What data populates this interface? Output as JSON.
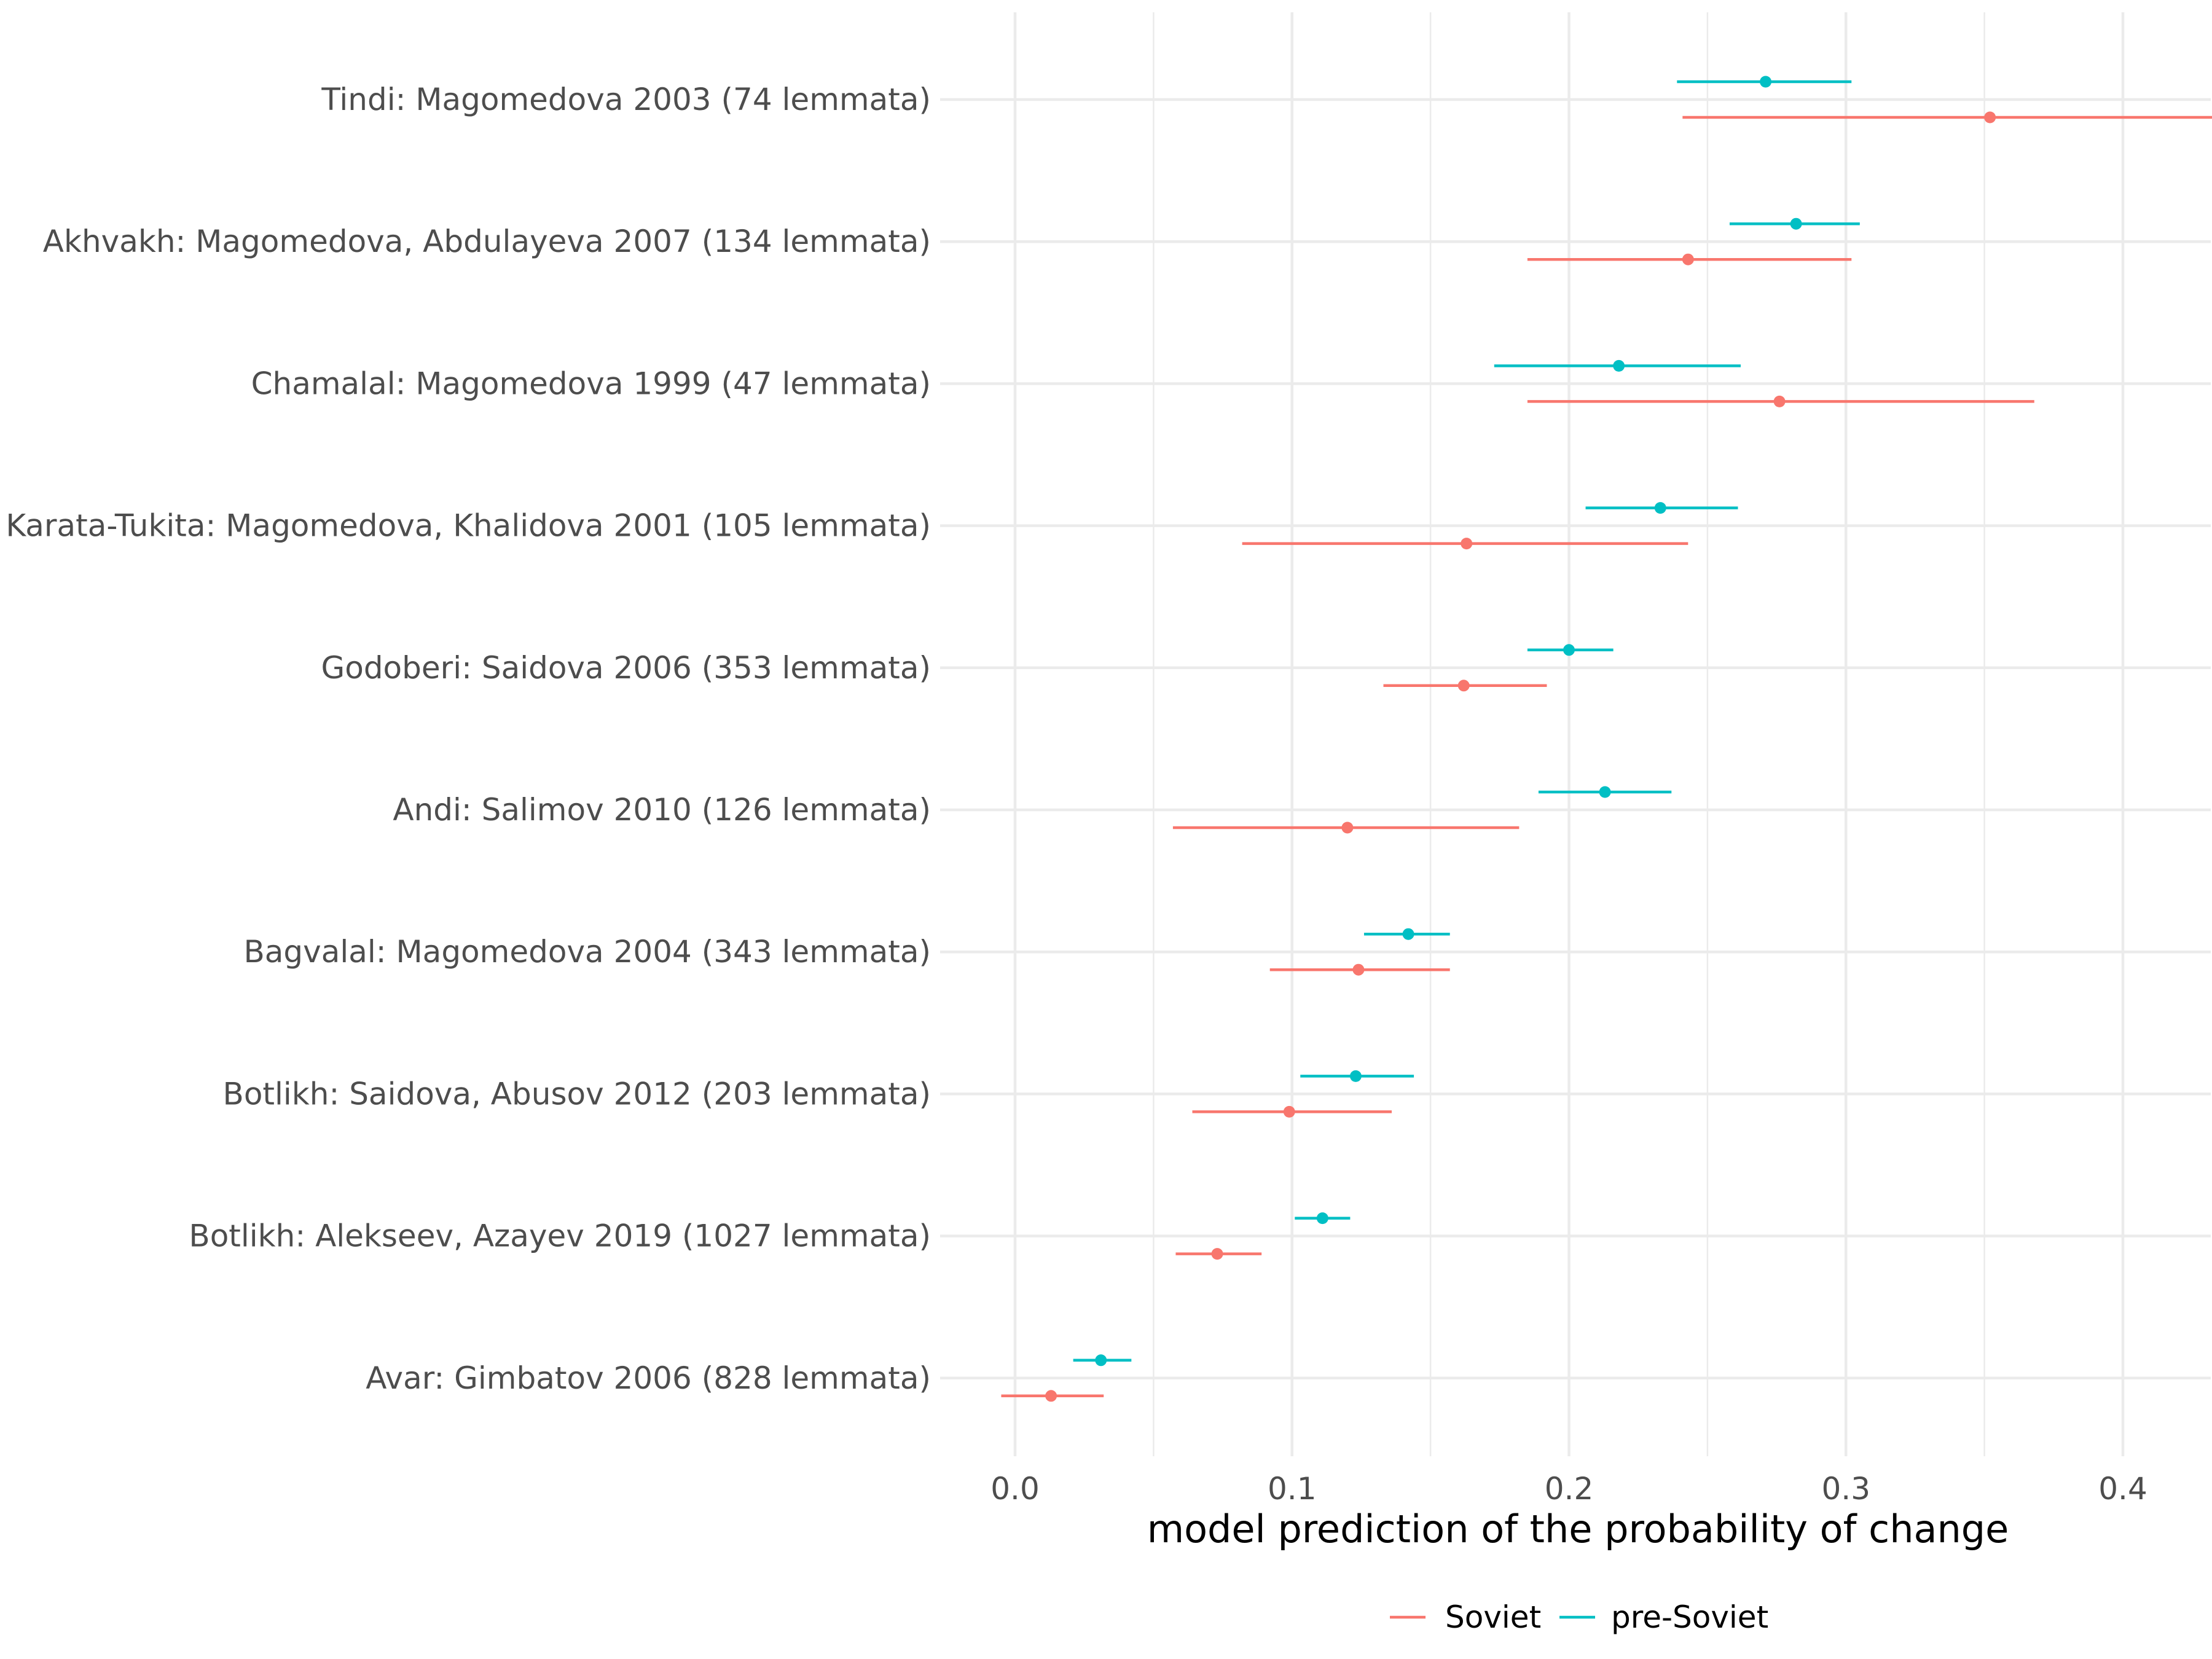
{
  "chart_data": {
    "type": "errorbar-dot",
    "xlabel": "model prediction of the probability of change",
    "ylabel": "",
    "xlim": [
      -0.03,
      0.47
    ],
    "xticks": [
      0.0,
      0.1,
      0.2,
      0.3,
      0.4
    ],
    "xtick_labels": [
      "0.0",
      "0.1",
      "0.2",
      "0.3",
      "0.4"
    ],
    "grid": true,
    "legend_position": "bottom",
    "categories": [
      "Tindi: Magomedova 2003 (74 lemmata)",
      "Akhvakh: Magomedova, Abdulayeva 2007 (134 lemmata)",
      "Chamalal: Magomedova 1999 (47 lemmata)",
      "Karata-Tukita: Magomedova, Khalidova 2001 (105 lemmata)",
      "Godoberi: Saidova 2006 (353 lemmata)",
      "Andi: Salimov 2010 (126 lemmata)",
      "Bagvalal: Magomedova 2004 (343 lemmata)",
      "Botlikh: Saidova, Abusov 2012 (203 lemmata)",
      "Botlikh: Alekseev, Azayev 2019 (1027 lemmata)",
      "Avar: Gimbatov 2006 (828 lemmata)"
    ],
    "series": [
      {
        "name": "Soviet",
        "color": "#F8766D",
        "estimate": [
          0.352,
          0.243,
          0.276,
          0.163,
          0.162,
          0.12,
          0.124,
          0.099,
          0.073,
          0.013
        ],
        "lower": [
          0.241,
          0.185,
          0.185,
          0.082,
          0.133,
          0.057,
          0.092,
          0.064,
          0.058,
          -0.005
        ],
        "upper": [
          0.461,
          0.302,
          0.368,
          0.243,
          0.192,
          0.182,
          0.157,
          0.136,
          0.089,
          0.032
        ]
      },
      {
        "name": "pre-Soviet",
        "color": "#00BFC4",
        "estimate": [
          0.271,
          0.282,
          0.218,
          0.233,
          0.2,
          0.213,
          0.142,
          0.123,
          0.111,
          0.031
        ],
        "lower": [
          0.239,
          0.258,
          0.173,
          0.206,
          0.185,
          0.189,
          0.126,
          0.103,
          0.101,
          0.021
        ],
        "upper": [
          0.302,
          0.305,
          0.262,
          0.261,
          0.216,
          0.237,
          0.157,
          0.144,
          0.121,
          0.042
        ]
      }
    ]
  }
}
